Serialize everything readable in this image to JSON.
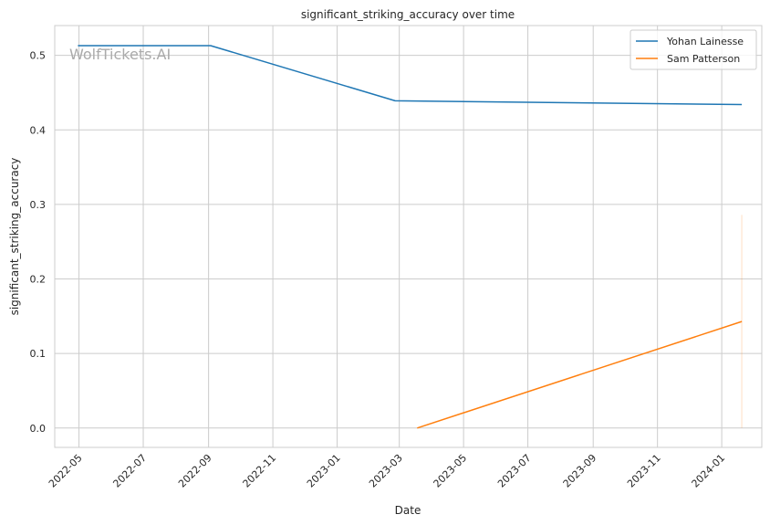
{
  "chart_data": {
    "type": "line",
    "title": "significant_striking_accuracy over time",
    "xlabel": "Date",
    "ylabel": "significant_striking_accuracy",
    "watermark": "WolfTickets.AI",
    "x_ticks": [
      "2022-05",
      "2022-07",
      "2022-09",
      "2022-11",
      "2023-01",
      "2023-03",
      "2023-05",
      "2023-07",
      "2023-09",
      "2023-11",
      "2024-01"
    ],
    "y_ticks": [
      "0.0",
      "0.1",
      "0.2",
      "0.3",
      "0.4",
      "0.5"
    ],
    "xlim": [
      "2022-04-08",
      "2024-02-08"
    ],
    "ylim": [
      -0.026,
      0.54
    ],
    "grid": true,
    "legend_position": "top-right",
    "series": [
      {
        "name": "Yohan Lainesse",
        "color": "#1f77b4",
        "points": [
          {
            "x": "2022-04-30",
            "y": 0.513
          },
          {
            "x": "2022-09-03",
            "y": 0.513
          },
          {
            "x": "2023-02-25",
            "y": 0.439
          },
          {
            "x": "2024-01-20",
            "y": 0.434
          }
        ]
      },
      {
        "name": "Sam Patterson",
        "color": "#ff7f0e",
        "points": [
          {
            "x": "2023-03-18",
            "y": 0.0
          },
          {
            "x": "2024-01-20",
            "y": 0.143
          }
        ],
        "band": {
          "x": "2024-01-20",
          "low": 0.0,
          "high": 0.286
        }
      }
    ]
  }
}
